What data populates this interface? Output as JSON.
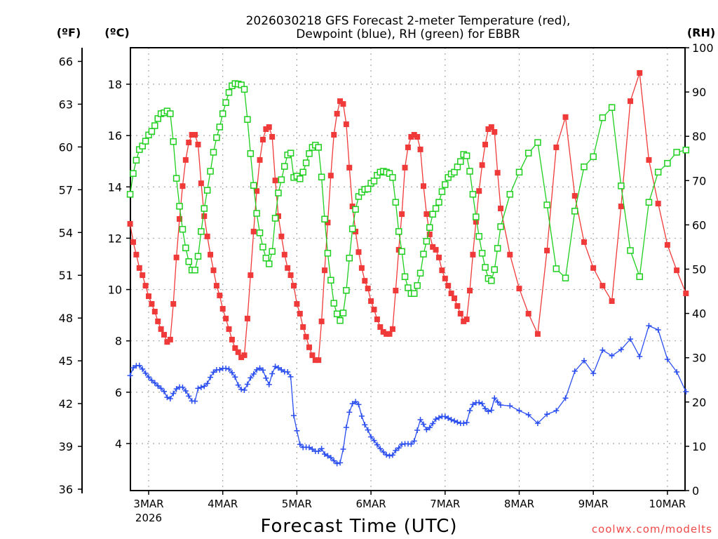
{
  "chart_data": {
    "type": "line",
    "title_lines": [
      "2026030218 GFS Forecast 2-meter Temperature (red),",
      "Dewpoint (blue), RH (green) for EBBR"
    ],
    "xlabel": "Forecast Time (UTC)",
    "unit_labels": {
      "fahrenheit": "(ºF)",
      "celsius": "(ºC)",
      "rh": "(RH)"
    },
    "x_ticks": [
      {
        "label": "3MAR",
        "hour": 0,
        "sub": "2026"
      },
      {
        "label": "4MAR",
        "hour": 24
      },
      {
        "label": "5MAR",
        "hour": 48
      },
      {
        "label": "6MAR",
        "hour": 72
      },
      {
        "label": "7MAR",
        "hour": 96
      },
      {
        "label": "8MAR",
        "hour": 120
      },
      {
        "label": "9MAR",
        "hour": 144
      },
      {
        "label": "10MAR",
        "hour": 168
      }
    ],
    "x_range_hours": [
      -6,
      174
    ],
    "x_units": "hours since 3MAR 00Z",
    "celsius_axis": {
      "range": [
        2.0,
        19.4
      ],
      "ticks": [
        4,
        6,
        8,
        10,
        12,
        14,
        16,
        18
      ]
    },
    "fahrenheit_axis": {
      "ticks": [
        36,
        39,
        42,
        45,
        48,
        51,
        54,
        57,
        60,
        63,
        66
      ]
    },
    "rh_axis": {
      "range": [
        0,
        100
      ],
      "ticks": [
        0,
        10,
        20,
        30,
        40,
        50,
        60,
        70,
        80,
        90,
        100
      ]
    },
    "grid": true,
    "hourly_until_hour": 114,
    "step_hours_after": 3,
    "series": [
      {
        "name": "Temperature",
        "axis": "celsius",
        "color": "#f03a3a",
        "marker": "filled-square",
        "values": [
          12.56,
          11.85,
          11.36,
          10.84,
          10.56,
          10.15,
          9.74,
          9.44,
          9.14,
          8.76,
          8.46,
          8.24,
          7.96,
          8.05,
          9.44,
          11.25,
          12.75,
          14.03,
          15.05,
          15.73,
          16.03,
          16.03,
          15.65,
          14.14,
          12.86,
          12.07,
          11.36,
          10.75,
          10.15,
          9.77,
          9.25,
          8.87,
          8.46,
          8.05,
          7.72,
          7.56,
          7.36,
          7.44,
          8.87,
          10.56,
          12.26,
          13.84,
          15.05,
          15.84,
          16.25,
          16.33,
          15.95,
          14.25,
          12.86,
          12.07,
          11.36,
          10.84,
          10.56,
          10.15,
          9.44,
          9.06,
          8.54,
          8.16,
          7.75,
          7.44,
          7.25,
          7.25,
          8.76,
          10.75,
          12.61,
          14.44,
          16.03,
          16.85,
          17.34,
          17.23,
          16.44,
          14.75,
          13.24,
          12.26,
          11.46,
          10.84,
          10.34,
          10.04,
          9.55,
          9.22,
          8.84,
          8.54,
          8.35,
          8.27,
          8.27,
          8.46,
          9.96,
          11.55,
          12.94,
          14.75,
          15.54,
          15.95,
          16.03,
          15.95,
          15.46,
          14.03,
          12.94,
          12.15,
          11.66,
          11.55,
          11.25,
          10.75,
          10.43,
          10.15,
          9.85,
          9.66,
          9.36,
          9.06,
          8.76,
          8.84,
          9.96,
          11.36,
          12.64,
          13.84,
          14.85,
          15.65,
          16.25,
          16.33,
          16.14,
          14.55,
          13.16,
          11.36,
          10.04,
          9.06,
          8.27,
          11.52,
          15.54,
          16.72,
          13.65,
          11.85,
          10.84,
          10.15,
          9.55,
          13.24,
          17.34,
          18.44,
          15.05,
          13.35,
          11.74,
          10.75,
          9.85
        ]
      },
      {
        "name": "Dewpoint",
        "axis": "celsius",
        "color": "#2a4ef0",
        "marker": "plus",
        "values": [
          6.65,
          6.95,
          7.03,
          7.04,
          6.9,
          6.74,
          6.59,
          6.46,
          6.36,
          6.25,
          6.15,
          6.03,
          5.8,
          5.75,
          5.95,
          6.13,
          6.2,
          6.19,
          6.05,
          5.85,
          5.66,
          5.65,
          6.15,
          6.19,
          6.23,
          6.34,
          6.58,
          6.78,
          6.87,
          6.87,
          6.93,
          6.93,
          6.9,
          6.76,
          6.59,
          6.28,
          6.11,
          6.08,
          6.31,
          6.56,
          6.71,
          6.87,
          6.94,
          6.86,
          6.55,
          6.3,
          6.72,
          7.0,
          6.95,
          6.87,
          6.8,
          6.79,
          6.6,
          5.09,
          4.5,
          3.97,
          3.85,
          3.86,
          3.85,
          3.78,
          3.7,
          3.7,
          3.8,
          3.59,
          3.52,
          3.45,
          3.33,
          3.22,
          3.25,
          3.78,
          4.63,
          5.22,
          5.55,
          5.63,
          5.52,
          5.07,
          4.73,
          4.53,
          4.26,
          4.12,
          3.95,
          3.8,
          3.67,
          3.56,
          3.52,
          3.55,
          3.73,
          3.83,
          3.97,
          3.99,
          3.99,
          3.98,
          4.1,
          4.52,
          4.93,
          4.75,
          4.54,
          4.62,
          4.78,
          4.95,
          5.0,
          5.06,
          5.05,
          4.99,
          4.93,
          4.88,
          4.83,
          4.79,
          4.79,
          4.82,
          5.28,
          5.52,
          5.59,
          5.6,
          5.55,
          5.36,
          5.25,
          5.3,
          5.77,
          5.62,
          5.5,
          5.47,
          5.28,
          5.12,
          4.79,
          5.14,
          5.28,
          5.77,
          6.82,
          7.23,
          6.73,
          7.64,
          7.42,
          7.66,
          8.07,
          7.39,
          8.59,
          8.43,
          7.28,
          6.79,
          6.02
        ]
      },
      {
        "name": "RH",
        "axis": "rh",
        "color": "#1ecf1e",
        "marker": "open-square",
        "values": [
          66.9,
          71.6,
          74.6,
          77.0,
          77.8,
          78.9,
          80.3,
          81.1,
          82.4,
          84.0,
          85.1,
          85.3,
          85.7,
          85.1,
          78.8,
          70.5,
          64.2,
          59.0,
          54.8,
          51.7,
          49.8,
          49.8,
          52.9,
          58.5,
          63.7,
          67.8,
          72.1,
          76.4,
          79.7,
          82.1,
          85.1,
          87.6,
          89.9,
          91.4,
          91.9,
          91.8,
          91.6,
          90.6,
          83.8,
          76.1,
          68.9,
          62.6,
          58.2,
          55.0,
          52.5,
          51.2,
          54.0,
          61.5,
          67.2,
          70.2,
          73.2,
          75.8,
          76.2,
          70.7,
          71.0,
          70.4,
          71.9,
          74.0,
          76.1,
          77.5,
          78.0,
          77.5,
          70.8,
          61.3,
          53.6,
          47.5,
          42.3,
          39.9,
          38.4,
          40.1,
          45.2,
          52.5,
          59.1,
          63.5,
          66.4,
          67.4,
          68.0,
          68.1,
          69.4,
          69.9,
          71.2,
          71.9,
          72.1,
          71.9,
          71.6,
          70.7,
          65.1,
          58.5,
          54.0,
          48.3,
          45.8,
          44.5,
          44.5,
          46.3,
          49.1,
          53.4,
          56.3,
          59.4,
          62.4,
          63.7,
          65.1,
          67.5,
          69.1,
          70.7,
          71.5,
          71.9,
          73.1,
          74.3,
          75.9,
          75.6,
          72.1,
          66.9,
          61.8,
          57.4,
          53.6,
          50.4,
          47.9,
          47.4,
          49.9,
          54.7,
          59.6,
          66.9,
          71.9,
          76.2,
          78.6,
          64.5,
          50.1,
          48.0,
          63.1,
          73.1,
          75.4,
          84.2,
          86.5,
          68.8,
          54.2,
          48.3,
          65.1,
          71.9,
          73.9,
          76.4,
          76.9
        ]
      }
    ],
    "watermark": {
      "text": "coolwx.com/modelts",
      "color": "#f04848"
    }
  }
}
